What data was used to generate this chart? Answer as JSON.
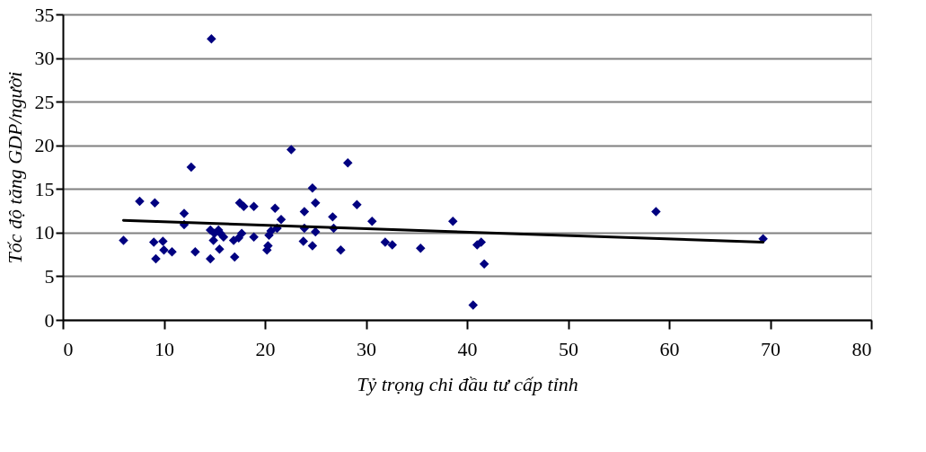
{
  "chart_data": {
    "type": "scatter",
    "xlabel": "Tỷ trọng chi đầu tư cấp tỉnh",
    "ylabel": "Tốc độ tăng  GDP/người",
    "xlim": [
      0,
      80
    ],
    "ylim": [
      0,
      35
    ],
    "xticks": [
      0,
      10,
      20,
      30,
      40,
      50,
      60,
      70,
      80
    ],
    "yticks": [
      0,
      5,
      10,
      15,
      20,
      25,
      30,
      35
    ],
    "grid": "y",
    "marker": "diamond",
    "series": [
      {
        "color": "#000080",
        "x": [
          6.0,
          7.6,
          9.1,
          9.0,
          9.2,
          9.9,
          10.0,
          10.8,
          12.0,
          12.0,
          12.7,
          13.1,
          14.7,
          14.6,
          14.6,
          15.0,
          15.4,
          15.6,
          14.9,
          15.5,
          15.9,
          16.9,
          17.0,
          17.5,
          17.9,
          17.7,
          17.4,
          18.9,
          18.9,
          20.2,
          20.3,
          20.4,
          20.6,
          21.0,
          21.6,
          21.2,
          22.6,
          23.8,
          23.9,
          23.9,
          24.7,
          25.0,
          24.7,
          25.0,
          26.7,
          26.8,
          27.5,
          28.2,
          29.1,
          30.6,
          31.9,
          32.6,
          35.4,
          38.6,
          40.6,
          41.0,
          41.4,
          41.7,
          58.7,
          69.3
        ],
        "values": [
          9.1,
          13.6,
          13.4,
          8.9,
          7.0,
          9.0,
          8.0,
          7.8,
          12.2,
          10.9,
          17.5,
          7.8,
          32.2,
          10.3,
          7.0,
          9.9,
          10.3,
          9.9,
          9.1,
          8.1,
          9.5,
          9.1,
          7.2,
          13.4,
          13.0,
          9.9,
          9.4,
          13.0,
          9.5,
          8.0,
          8.5,
          9.7,
          10.2,
          12.8,
          11.5,
          10.5,
          19.5,
          9.0,
          12.4,
          10.5,
          15.1,
          13.4,
          8.5,
          10.1,
          11.8,
          10.5,
          8.0,
          18.0,
          13.2,
          11.3,
          8.9,
          8.6,
          8.2,
          11.3,
          1.7,
          8.6,
          8.9,
          6.4,
          12.4,
          9.3
        ]
      },
      {
        "type": "line",
        "color": "#000000",
        "x": [
          6.0,
          69.3
        ],
        "values": [
          11.4,
          8.9
        ],
        "marker": "none"
      }
    ]
  }
}
